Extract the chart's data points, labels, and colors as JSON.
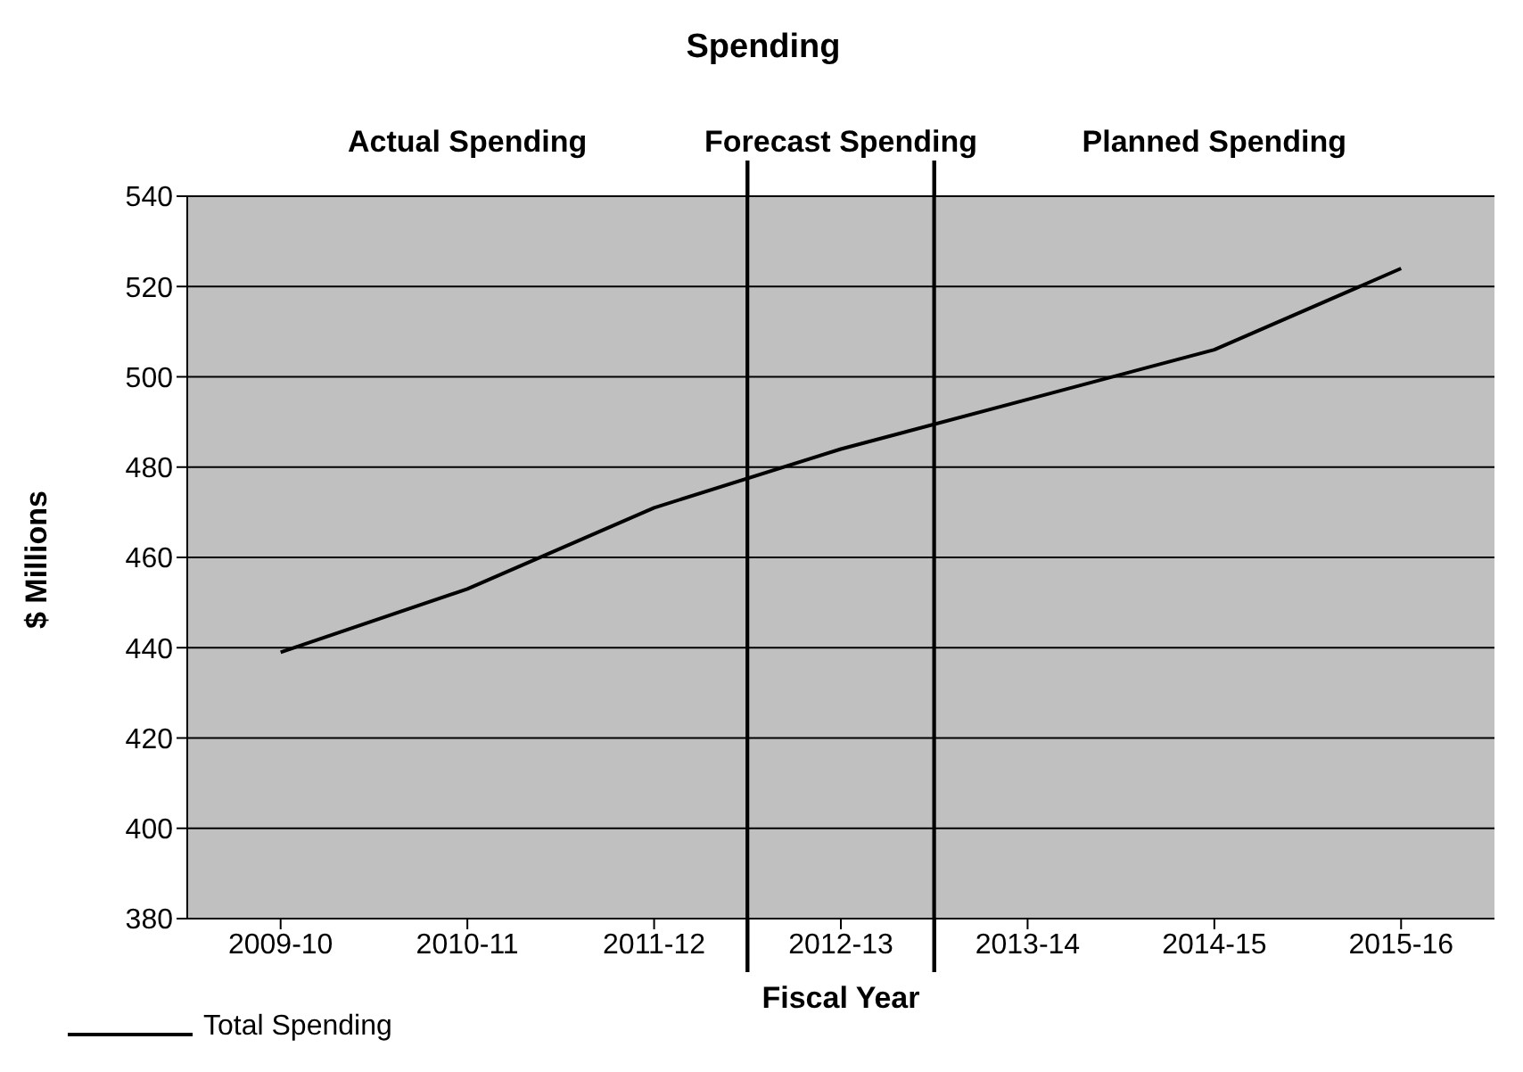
{
  "chart_data": {
    "type": "line",
    "title": "Spending",
    "xlabel": "Fiscal Year",
    "ylabel": "$ Millions",
    "categories": [
      "2009-10",
      "2010-11",
      "2011-12",
      "2012-13",
      "2013-14",
      "2014-15",
      "2015-16"
    ],
    "series": [
      {
        "name": "Total Spending",
        "color": "#000000",
        "values": [
          439,
          453,
          471,
          484,
          495,
          506,
          524
        ]
      }
    ],
    "ylim": [
      380,
      540
    ],
    "yticks": [
      380,
      400,
      420,
      440,
      460,
      480,
      500,
      520,
      540
    ],
    "grid": "y",
    "legend": "bottom left",
    "marker": "none",
    "line_style": "solid",
    "bands": [
      {
        "axis": "x",
        "from": "2009-10",
        "to": "2011-12",
        "label": "Actual Spending",
        "color": "#c0c0c0"
      },
      {
        "axis": "x",
        "from": "2012-13",
        "to": "2012-13",
        "label": "Forecast Spending",
        "color": "#c0c0c0"
      },
      {
        "axis": "x",
        "from": "2013-14",
        "to": "2015-16",
        "label": "Planned Spending",
        "color": "#c0c0c0"
      }
    ]
  }
}
